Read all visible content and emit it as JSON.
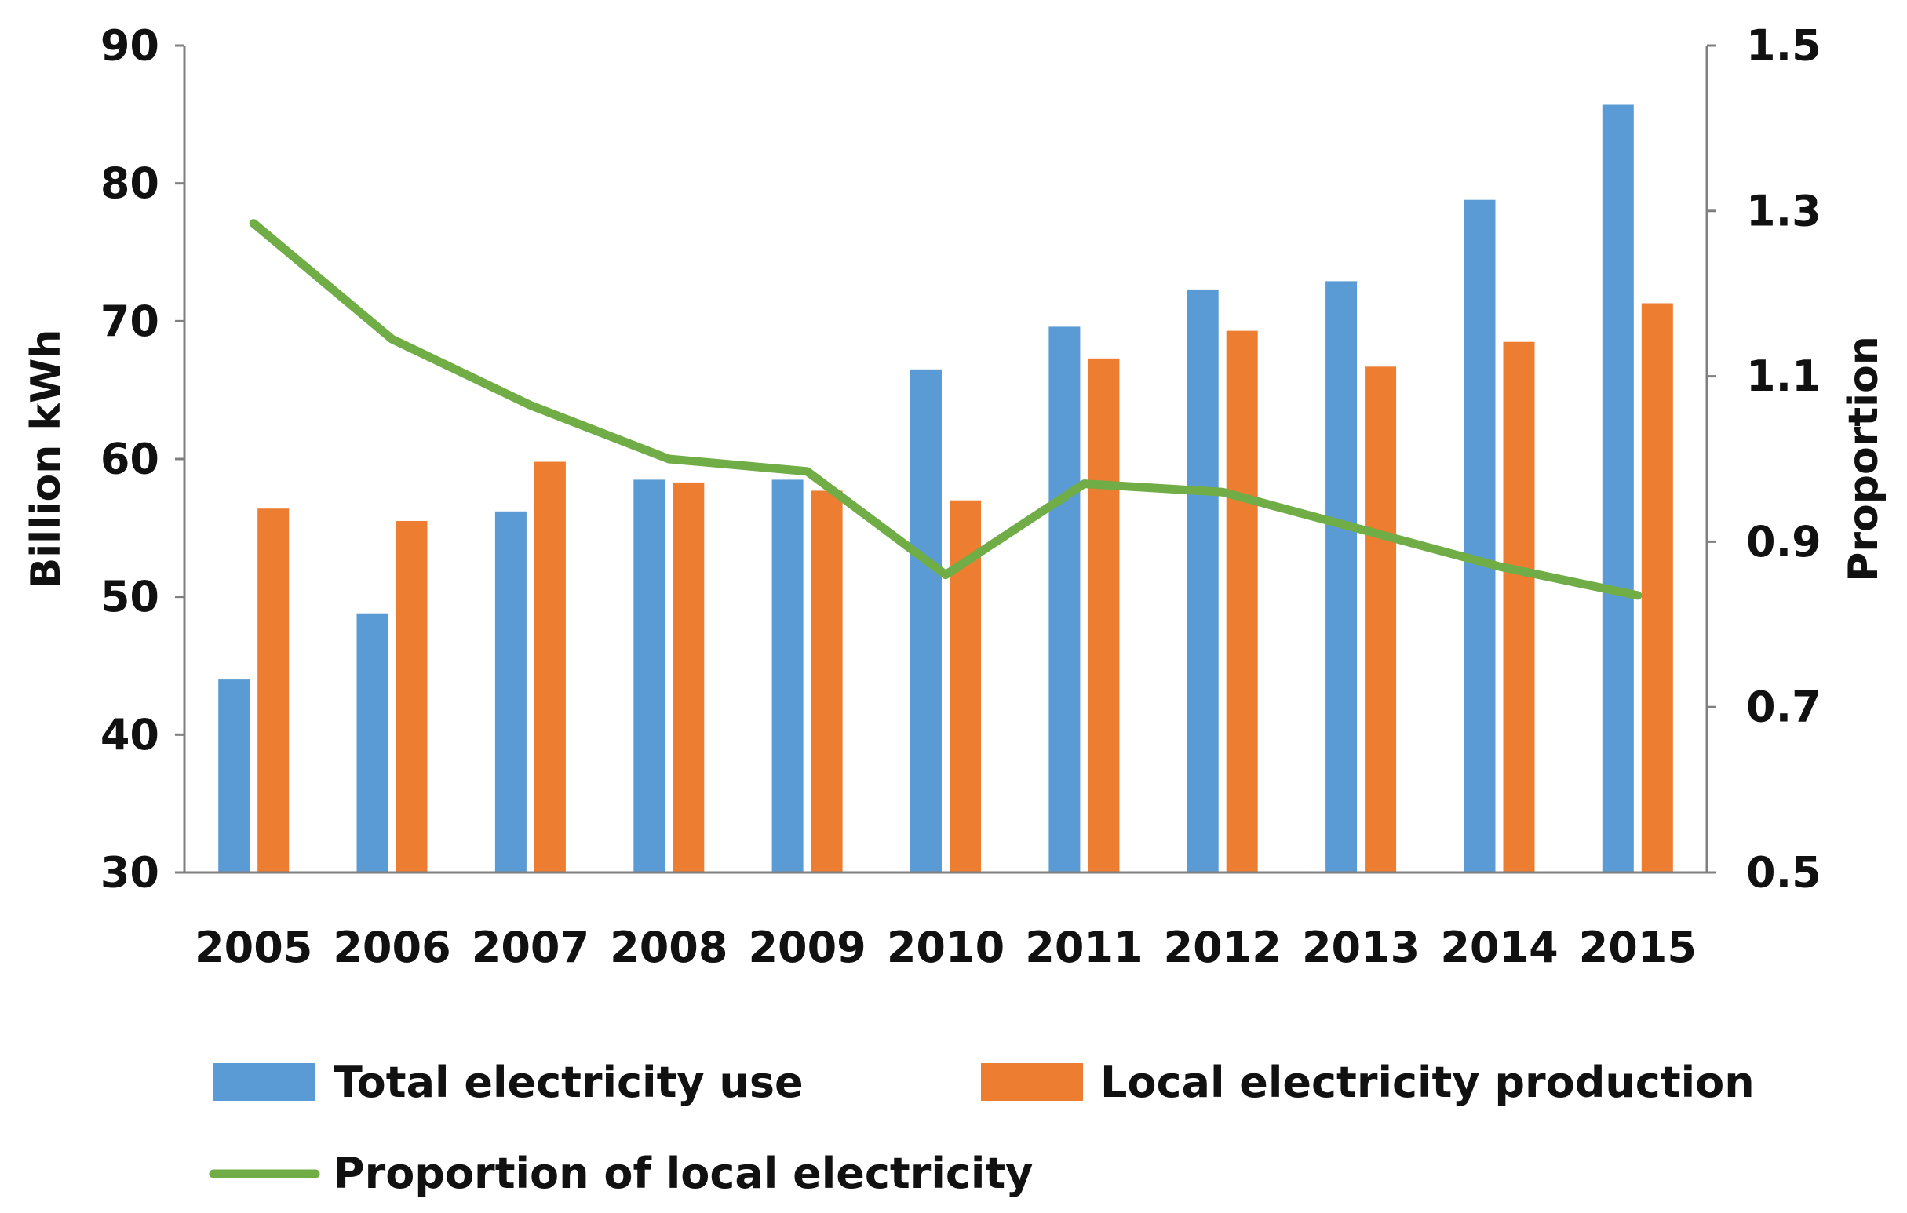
{
  "chart_data": {
    "type": "bar",
    "categories": [
      "2005",
      "2006",
      "2007",
      "2008",
      "2009",
      "2010",
      "2011",
      "2012",
      "2013",
      "2014",
      "2015"
    ],
    "series": [
      {
        "name": "Total electricity use",
        "kind": "bar",
        "axis": "left",
        "color": "#5B9BD5",
        "values": [
          44.0,
          48.8,
          56.2,
          58.5,
          58.5,
          66.5,
          69.6,
          72.3,
          72.9,
          78.8,
          85.7
        ]
      },
      {
        "name": "Local electricity production",
        "kind": "bar",
        "axis": "left",
        "color": "#ED7D31",
        "values": [
          56.4,
          55.5,
          59.8,
          58.3,
          57.7,
          57.0,
          67.3,
          69.3,
          66.7,
          68.5,
          71.3
        ]
      },
      {
        "name": "Proportion of local electricity",
        "kind": "line",
        "axis": "right",
        "color": "#70AD47",
        "values": [
          1.285,
          1.145,
          1.065,
          1.0,
          0.985,
          0.86,
          0.97,
          0.96,
          0.915,
          0.87,
          0.835
        ]
      }
    ],
    "ylabel": "Billion kWh",
    "y2label": "Proportion",
    "ylim": [
      30,
      90
    ],
    "yticks": [
      "90",
      "80",
      "70",
      "60",
      "50",
      "40",
      "30"
    ],
    "y2lim": [
      0.5,
      1.5
    ],
    "y2ticks": [
      "1.5",
      "1.3",
      "1.1",
      "0.9",
      "0.7",
      "0.5"
    ],
    "grid": false,
    "legend_position": "bottom"
  }
}
